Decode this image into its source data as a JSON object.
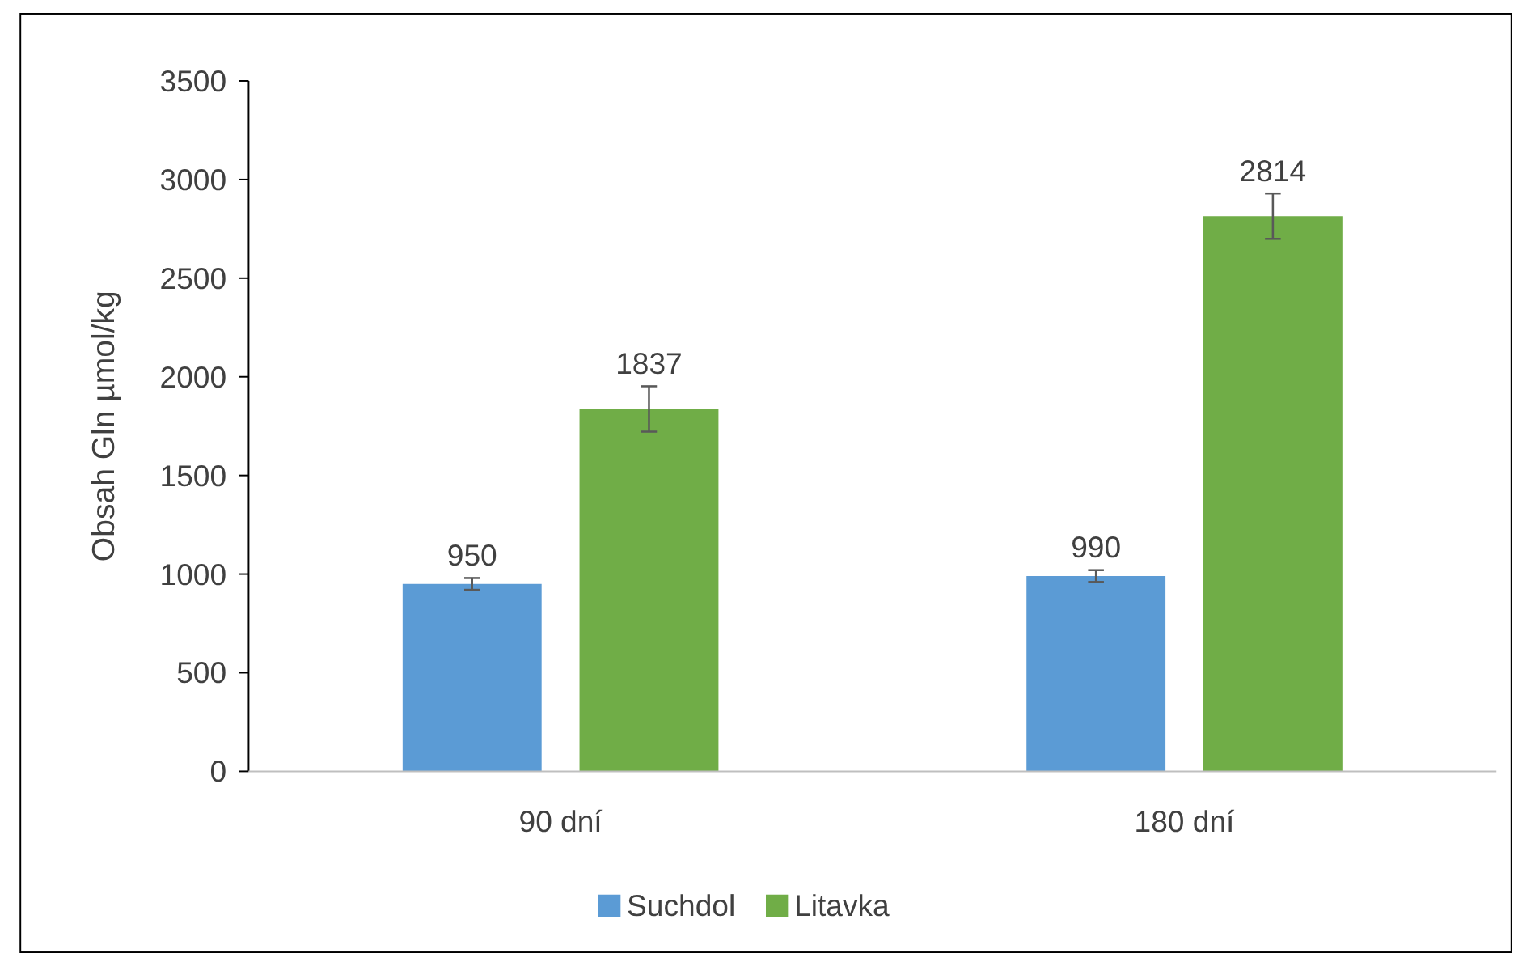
{
  "chart_data": {
    "type": "bar",
    "ylabel": "Obsah Gln µmol/kg",
    "categories": [
      "90 dní",
      "180 dní"
    ],
    "series": [
      {
        "name": "Suchdol",
        "color": "#5b9bd5",
        "values": [
          950,
          990
        ],
        "errors": [
          30,
          30
        ]
      },
      {
        "name": "Litavka",
        "color": "#70ad47",
        "values": [
          1837,
          2814
        ],
        "errors": [
          115,
          115
        ]
      }
    ],
    "ylim": [
      0,
      3500
    ],
    "yticks": [
      0,
      500,
      1000,
      1500,
      2000,
      2500,
      3000,
      3500
    ],
    "data_labels": true,
    "grid": false,
    "legend": "bottom"
  }
}
